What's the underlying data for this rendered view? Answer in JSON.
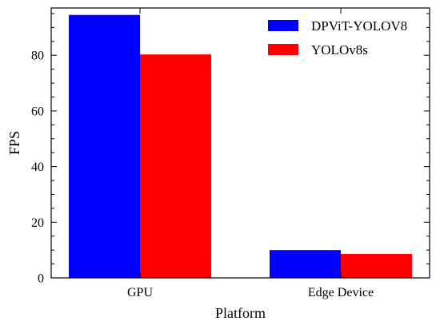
{
  "chart_data": {
    "type": "bar",
    "categories": [
      "GPU",
      "Edge Device"
    ],
    "series": [
      {
        "name": "DPViT-YOLOV8",
        "values": [
          94.5,
          10.0
        ],
        "color": "#0000ff"
      },
      {
        "name": "YOLOv8s",
        "values": [
          80.3,
          8.6
        ],
        "color": "#ff0000"
      }
    ],
    "title": "",
    "xlabel": "Platform",
    "ylabel": "FPS",
    "ylim": [
      0,
      97
    ],
    "yticks": [
      0,
      20,
      40,
      60,
      80
    ],
    "grid": false,
    "legend_position": "top-right"
  }
}
